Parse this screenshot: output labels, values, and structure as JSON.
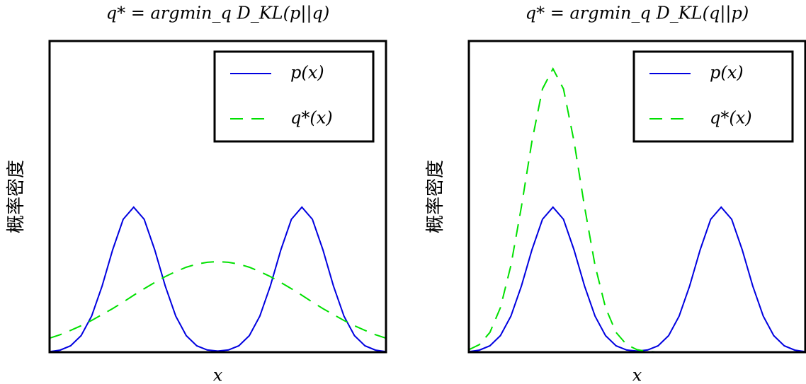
{
  "chart_data": [
    {
      "type": "line",
      "title": "q* = argmin_q D_KL(p||q)",
      "x_label": "x",
      "y_label": "概率密度",
      "x": [
        -4,
        -3.75,
        -3.5,
        -3.25,
        -3,
        -2.75,
        -2.5,
        -2.25,
        -2,
        -1.75,
        -1.5,
        -1.25,
        -1,
        -0.75,
        -0.5,
        -0.25,
        0,
        0.25,
        0.5,
        0.75,
        1,
        1.25,
        1.5,
        1.75,
        2,
        2.25,
        2.5,
        2.75,
        3,
        3.25,
        3.5,
        3.75,
        4
      ],
      "xlim": [
        -4,
        4
      ],
      "ylim": [
        0,
        1
      ],
      "legend": "upper right",
      "series": [
        {
          "name": "p(x)",
          "color": "#0000e0",
          "dashed": false,
          "values": [
            0.0018,
            0.0066,
            0.0205,
            0.0531,
            0.116,
            0.213,
            0.329,
            0.427,
            0.466,
            0.427,
            0.329,
            0.213,
            0.116,
            0.0531,
            0.0205,
            0.007,
            0.0036,
            0.007,
            0.0205,
            0.0531,
            0.116,
            0.213,
            0.329,
            0.427,
            0.466,
            0.427,
            0.329,
            0.213,
            0.116,
            0.0531,
            0.0205,
            0.0066,
            0.0018
          ]
        },
        {
          "name": "q*(x)",
          "color": "#00e000",
          "dashed": true,
          "values": [
            0.045,
            0.056,
            0.07,
            0.085,
            0.102,
            0.121,
            0.14,
            0.161,
            0.183,
            0.204,
            0.224,
            0.243,
            0.259,
            0.273,
            0.283,
            0.289,
            0.291,
            0.289,
            0.283,
            0.273,
            0.259,
            0.243,
            0.224,
            0.204,
            0.183,
            0.161,
            0.14,
            0.121,
            0.102,
            0.085,
            0.07,
            0.056,
            0.045
          ]
        }
      ]
    },
    {
      "type": "line",
      "title": "q* = argmin_q D_KL(q||p)",
      "x_label": "x",
      "y_label": "概率密度",
      "x": [
        -4,
        -3.75,
        -3.5,
        -3.25,
        -3,
        -2.75,
        -2.5,
        -2.25,
        -2,
        -1.75,
        -1.5,
        -1.25,
        -1,
        -0.75,
        -0.5,
        -0.25,
        0,
        0.25,
        0.5,
        0.75,
        1,
        1.25,
        1.5,
        1.75,
        2,
        2.25,
        2.5,
        2.75,
        3,
        3.25,
        3.5,
        3.75,
        4
      ],
      "xlim": [
        -4,
        4
      ],
      "ylim": [
        0,
        1
      ],
      "legend": "upper right",
      "series": [
        {
          "name": "p(x)",
          "color": "#0000e0",
          "dashed": false,
          "values": [
            0.0018,
            0.0066,
            0.0205,
            0.0531,
            0.116,
            0.213,
            0.329,
            0.427,
            0.466,
            0.427,
            0.329,
            0.213,
            0.116,
            0.0531,
            0.0205,
            0.007,
            0.0036,
            0.007,
            0.0205,
            0.0531,
            0.116,
            0.213,
            0.329,
            0.427,
            0.466,
            0.427,
            0.329,
            0.213,
            0.116,
            0.0531,
            0.0205,
            0.0066,
            0.0018
          ]
        },
        {
          "name": "q*(x)",
          "color": "#00e000",
          "dashed": true,
          "values": [
            0.008,
            0.0243,
            0.0635,
            0.143,
            0.279,
            0.468,
            0.678,
            0.846,
            0.911,
            0.846,
            0.678,
            0.468,
            0.279,
            0.143,
            0.0635,
            0.0243,
            0.008,
            0.0023,
            0.0005,
            null,
            null,
            null,
            null,
            null,
            null,
            null,
            null,
            null,
            null,
            null,
            null,
            null,
            null
          ]
        }
      ]
    }
  ]
}
